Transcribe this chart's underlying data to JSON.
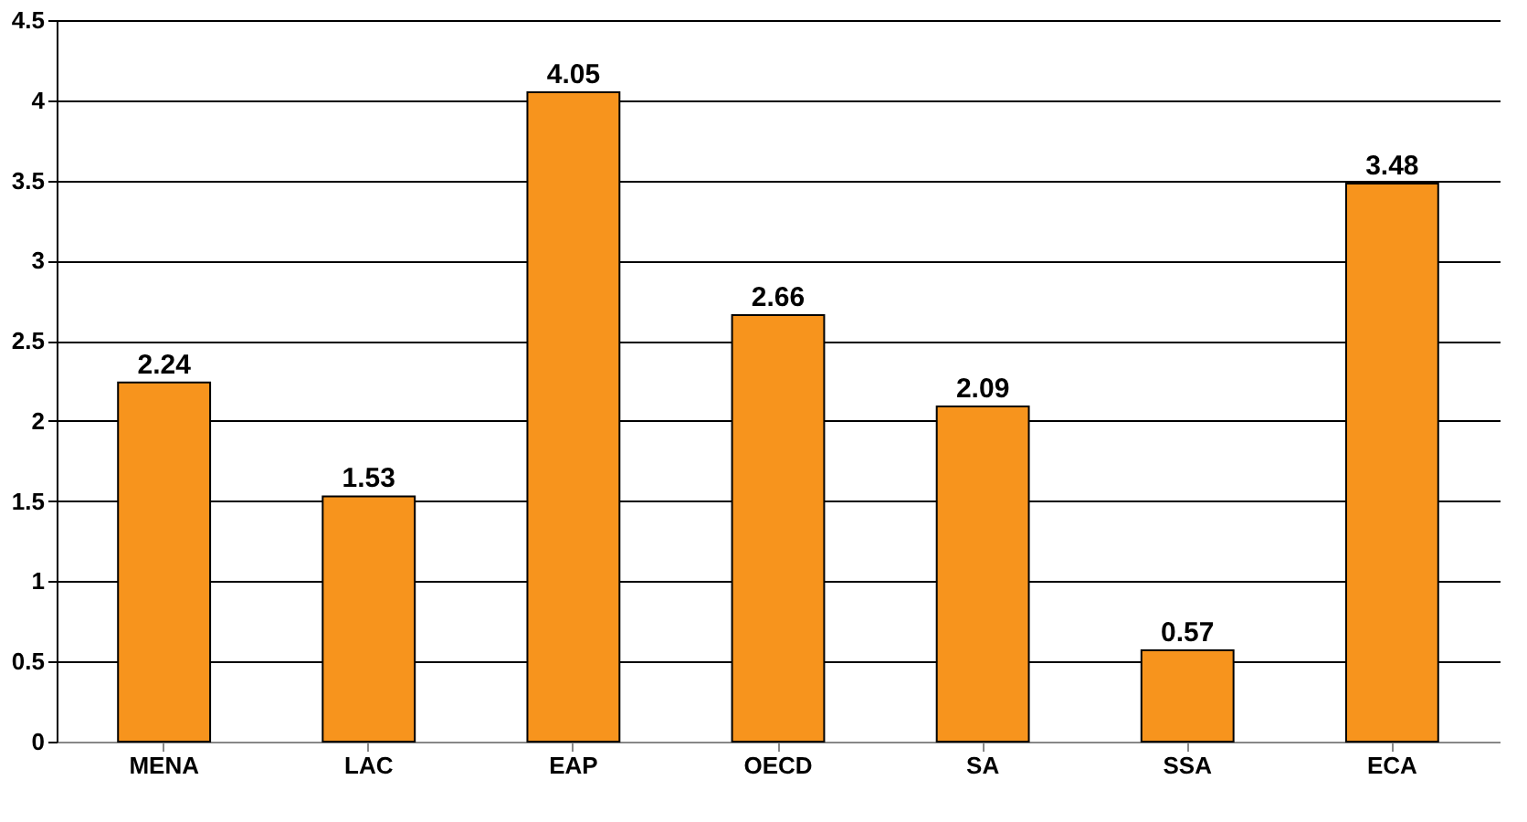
{
  "chart_data": {
    "type": "bar",
    "categories": [
      "MENA",
      "LAC",
      "EAP",
      "OECD",
      "SA",
      "SSA",
      "ECA"
    ],
    "values": [
      2.24,
      1.53,
      4.05,
      2.66,
      2.09,
      0.57,
      3.48
    ],
    "color": "#f7941d",
    "ylim": [
      0,
      4.5
    ],
    "yticks": [
      0,
      0.5,
      1,
      1.5,
      2,
      2.5,
      3,
      3.5,
      4,
      4.5
    ],
    "grid": "y",
    "data_labels": true
  }
}
